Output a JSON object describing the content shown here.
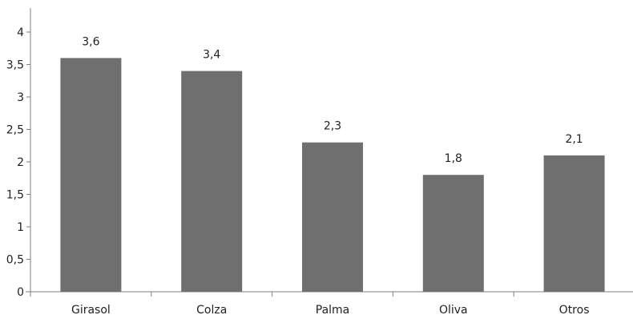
{
  "chart_data": {
    "type": "bar",
    "categories": [
      "Girasol",
      "Colza",
      "Palma",
      "Oliva",
      "Otros"
    ],
    "values": [
      3.6,
      3.4,
      2.3,
      1.8,
      2.1
    ],
    "data_labels": [
      "3,6",
      "3,4",
      "2,3",
      "1,8",
      "2,1"
    ],
    "y_ticks": [
      "0",
      "0,5",
      "1",
      "1,5",
      "2",
      "2,5",
      "3",
      "3,5",
      "4"
    ],
    "ylim": [
      0,
      4
    ],
    "grid": false,
    "legend": "none",
    "bar_color": "#6f6f6f"
  }
}
